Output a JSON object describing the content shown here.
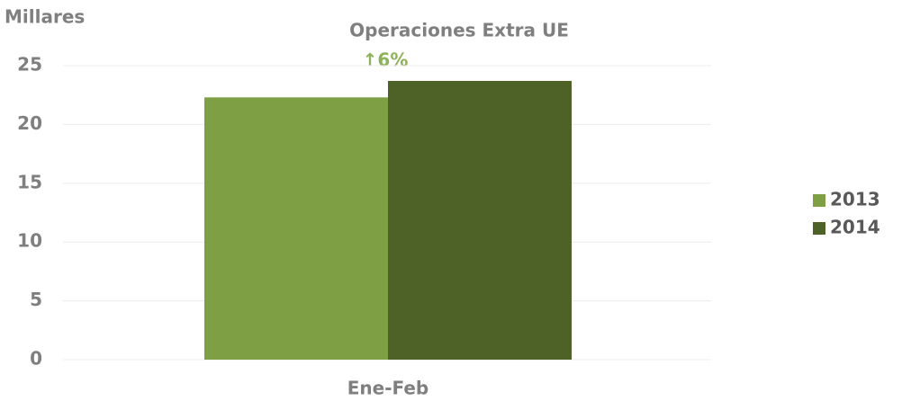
{
  "chart_data": {
    "type": "bar",
    "title": "Operaciones Extra UE",
    "y_label": "Millares",
    "annotation": "↑6%",
    "categories": [
      "Ene-Feb"
    ],
    "series": [
      {
        "name": "2013",
        "color": "#7f9f45",
        "values": [
          22.3
        ]
      },
      {
        "name": "2014",
        "color": "#4e6228",
        "values": [
          23.7
        ]
      }
    ],
    "ylim": [
      0,
      25
    ],
    "yticks": [
      0,
      5,
      10,
      15,
      20,
      25
    ],
    "grid": true,
    "legend": "right"
  }
}
